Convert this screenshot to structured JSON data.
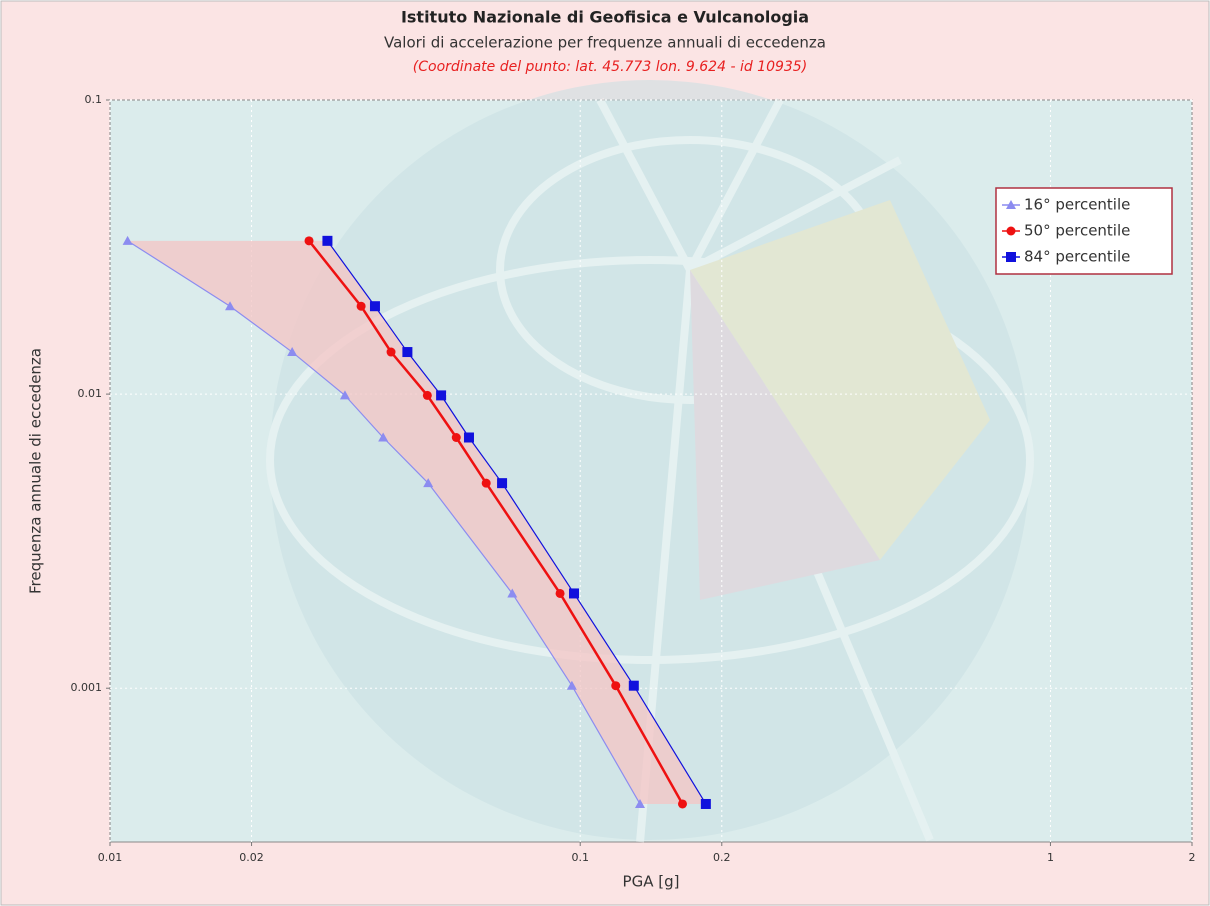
{
  "chart_data": {
    "type": "line",
    "title": "Istituto Nazionale di Geofisica e Vulcanologia",
    "subtitle": "Valori di accelerazione per frequenze annuali di eccedenza",
    "annotation": "(Coordinate del punto: lat. 45.773 lon. 9.624 - id 10935)",
    "x_label": "PGA [g]",
    "y_label": "Frequenza annuale di eccedenza",
    "log_x": true,
    "log_y": true,
    "grid": true,
    "legend": "upper right",
    "xlim": [
      0.01,
      2
    ],
    "xticks": [
      0.01,
      0.02,
      0.1,
      0.2,
      1,
      2
    ],
    "ylim": [
      0.0003,
      0.1
    ],
    "yticks": [
      0.1,
      0.01,
      0.001
    ],
    "band_color": "#f4c4c4",
    "series": [
      {
        "name": "16° percentile",
        "color": "#8c8cf0",
        "marker": "triangle",
        "x": [
          0.0109,
          0.018,
          0.0244,
          0.0316,
          0.0381,
          0.0475,
          0.0717,
          0.096,
          0.134
        ],
        "values": [
          0.0332,
          0.0199,
          0.0139,
          0.0099,
          0.00712,
          0.00498,
          0.0021,
          0.00102,
          0.000404
        ]
      },
      {
        "name": "50° percentile",
        "color": "#ee1111",
        "marker": "circle",
        "x": [
          0.0265,
          0.0342,
          0.0396,
          0.0473,
          0.0545,
          0.0631,
          0.0906,
          0.119,
          0.165
        ],
        "values": [
          0.0332,
          0.0199,
          0.0139,
          0.0099,
          0.00712,
          0.00498,
          0.0021,
          0.00102,
          0.000404
        ]
      },
      {
        "name": "84° percentile",
        "color": "#1111dd",
        "marker": "square",
        "x": [
          0.029,
          0.0366,
          0.0429,
          0.0506,
          0.058,
          0.0682,
          0.097,
          0.13,
          0.185
        ],
        "values": [
          0.0332,
          0.0199,
          0.0139,
          0.0099,
          0.00712,
          0.00498,
          0.0021,
          0.00102,
          0.000404
        ]
      }
    ]
  }
}
